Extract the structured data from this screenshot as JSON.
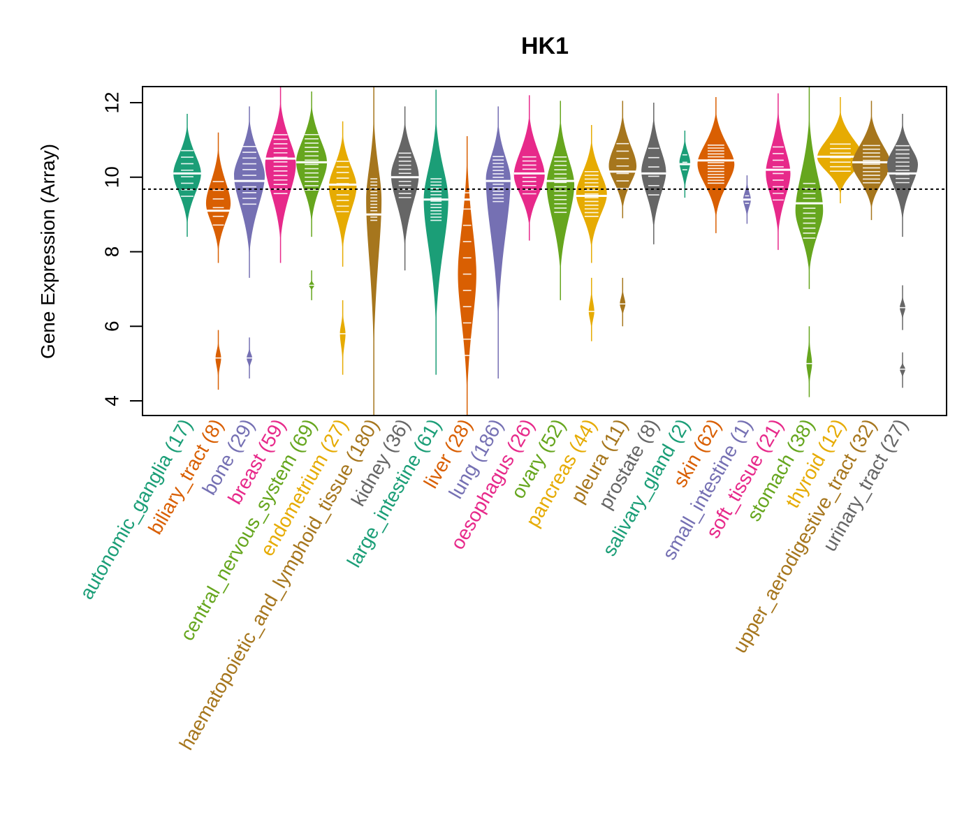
{
  "chart_data": {
    "type": "violin",
    "title": "HK1",
    "xlabel": "",
    "ylabel": "Gene Expression (Array)",
    "ylim": [
      3.6,
      12.45
    ],
    "yticks": [
      4,
      6,
      8,
      10,
      12
    ],
    "reference_line": 9.68,
    "categories": [
      {
        "name": "autonomic_ganglia",
        "n": 17,
        "color": "#1B9E77",
        "min": 8.4,
        "max": 11.7,
        "median": 10.1,
        "q1": 9.4,
        "q3": 10.8,
        "halfwidth": 0.9,
        "lows": []
      },
      {
        "name": "biliary_tract",
        "n": 8,
        "color": "#D95F02",
        "min": 7.7,
        "max": 11.2,
        "median": 9.1,
        "q1": 8.6,
        "q3": 10.0,
        "halfwidth": 0.8,
        "lows": [
          [
            4.3,
            5.9,
            5.15
          ]
        ]
      },
      {
        "name": "bone",
        "n": 29,
        "color": "#7570B3",
        "min": 7.3,
        "max": 11.9,
        "median": 9.9,
        "q1": 9.2,
        "q3": 10.9,
        "halfwidth": 1.0,
        "lows": [
          [
            4.6,
            5.7,
            5.15
          ]
        ]
      },
      {
        "name": "breast",
        "n": 59,
        "color": "#E7298A",
        "min": 7.7,
        "max": 12.45,
        "median": 10.5,
        "q1": 9.5,
        "q3": 11.2,
        "halfwidth": 1.0,
        "lows": []
      },
      {
        "name": "central_nervous_system",
        "n": 69,
        "color": "#66A61E",
        "min": 8.4,
        "max": 12.3,
        "median": 10.4,
        "q1": 9.6,
        "q3": 11.2,
        "halfwidth": 1.0,
        "lows": [
          [
            6.7,
            7.5,
            7.1
          ]
        ]
      },
      {
        "name": "endometrium",
        "n": 27,
        "color": "#E6AB02",
        "min": 7.6,
        "max": 11.5,
        "median": 9.8,
        "q1": 9.0,
        "q3": 10.5,
        "halfwidth": 0.9,
        "lows": [
          [
            4.7,
            6.7,
            5.8
          ]
        ]
      },
      {
        "name": "haematopoietic_and_lymphoid_tissue",
        "n": 180,
        "color": "#A6761D",
        "min": 3.6,
        "max": 12.45,
        "median": 9.0,
        "q1": 8.8,
        "q3": 10.0,
        "halfwidth": 0.5,
        "lows": []
      },
      {
        "name": "kidney",
        "n": 36,
        "color": "#666666",
        "min": 7.5,
        "max": 11.9,
        "median": 10.0,
        "q1": 9.4,
        "q3": 10.7,
        "halfwidth": 0.9,
        "lows": []
      },
      {
        "name": "large_intestine",
        "n": 61,
        "color": "#1B9E77",
        "min": 4.7,
        "max": 12.35,
        "median": 9.4,
        "q1": 8.8,
        "q3": 10.0,
        "halfwidth": 0.8,
        "lows": []
      },
      {
        "name": "liver",
        "n": 28,
        "color": "#D95F02",
        "min": 3.6,
        "max": 11.1,
        "median": 9.4,
        "q1": 5.0,
        "q3": 9.8,
        "halfwidth": 0.6,
        "lows": []
      },
      {
        "name": "lung",
        "n": 186,
        "color": "#7570B3",
        "min": 4.6,
        "max": 11.9,
        "median": 9.9,
        "q1": 9.3,
        "q3": 10.6,
        "halfwidth": 0.8,
        "lows": []
      },
      {
        "name": "oesophagus",
        "n": 26,
        "color": "#E7298A",
        "min": 8.3,
        "max": 12.2,
        "median": 10.1,
        "q1": 9.5,
        "q3": 10.6,
        "halfwidth": 1.0,
        "lows": []
      },
      {
        "name": "ovary",
        "n": 52,
        "color": "#66A61E",
        "min": 6.7,
        "max": 12.05,
        "median": 9.9,
        "q1": 9.0,
        "q3": 10.6,
        "halfwidth": 0.9,
        "lows": []
      },
      {
        "name": "pancreas",
        "n": 44,
        "color": "#E6AB02",
        "min": 7.7,
        "max": 11.4,
        "median": 9.5,
        "q1": 8.9,
        "q3": 10.2,
        "halfwidth": 1.0,
        "lows": [
          [
            5.6,
            7.3,
            6.4
          ]
        ]
      },
      {
        "name": "pleura",
        "n": 11,
        "color": "#A6761D",
        "min": 8.9,
        "max": 12.05,
        "median": 10.15,
        "q1": 9.6,
        "q3": 11.0,
        "halfwidth": 0.9,
        "lows": [
          [
            6.0,
            7.3,
            6.6
          ]
        ]
      },
      {
        "name": "prostate",
        "n": 8,
        "color": "#666666",
        "min": 8.2,
        "max": 12.0,
        "median": 10.1,
        "q1": 9.4,
        "q3": 10.9,
        "halfwidth": 0.8,
        "lows": []
      },
      {
        "name": "salivary_gland",
        "n": 2,
        "color": "#1B9E77",
        "min": 9.45,
        "max": 11.25,
        "median": 10.35,
        "q1": 10.1,
        "q3": 10.7,
        "halfwidth": 0.35,
        "lows": []
      },
      {
        "name": "skin",
        "n": 62,
        "color": "#D95F02",
        "min": 8.5,
        "max": 12.15,
        "median": 10.45,
        "q1": 9.8,
        "q3": 10.9,
        "halfwidth": 1.2,
        "lows": []
      },
      {
        "name": "small_intestine",
        "n": 1,
        "color": "#7570B3",
        "min": 8.75,
        "max": 10.05,
        "median": 9.4,
        "q1": 9.2,
        "q3": 9.6,
        "halfwidth": 0.25,
        "lows": []
      },
      {
        "name": "soft_tissue",
        "n": 21,
        "color": "#E7298A",
        "min": 8.05,
        "max": 12.25,
        "median": 10.2,
        "q1": 9.3,
        "q3": 10.9,
        "halfwidth": 0.8,
        "lows": []
      },
      {
        "name": "stomach",
        "n": 38,
        "color": "#66A61E",
        "min": 7.0,
        "max": 12.45,
        "median": 9.3,
        "q1": 8.3,
        "q3": 9.9,
        "halfwidth": 0.9,
        "lows": [
          [
            4.1,
            6.0,
            5.0
          ]
        ]
      },
      {
        "name": "thyroid",
        "n": 12,
        "color": "#E6AB02",
        "min": 9.3,
        "max": 12.15,
        "median": 10.55,
        "q1": 10.1,
        "q3": 10.95,
        "halfwidth": 1.5,
        "lows": []
      },
      {
        "name": "upper_aerodigestive_tract",
        "n": 32,
        "color": "#A6761D",
        "min": 8.85,
        "max": 12.05,
        "median": 10.4,
        "q1": 9.8,
        "q3": 10.9,
        "halfwidth": 1.25,
        "lows": []
      },
      {
        "name": "urinary_tract",
        "n": 27,
        "color": "#666666",
        "min": 8.4,
        "max": 11.7,
        "median": 10.1,
        "q1": 9.8,
        "q3": 10.9,
        "halfwidth": 1.0,
        "lows": [
          [
            5.9,
            7.1,
            6.5
          ],
          [
            4.35,
            5.3,
            4.85
          ]
        ]
      }
    ]
  }
}
